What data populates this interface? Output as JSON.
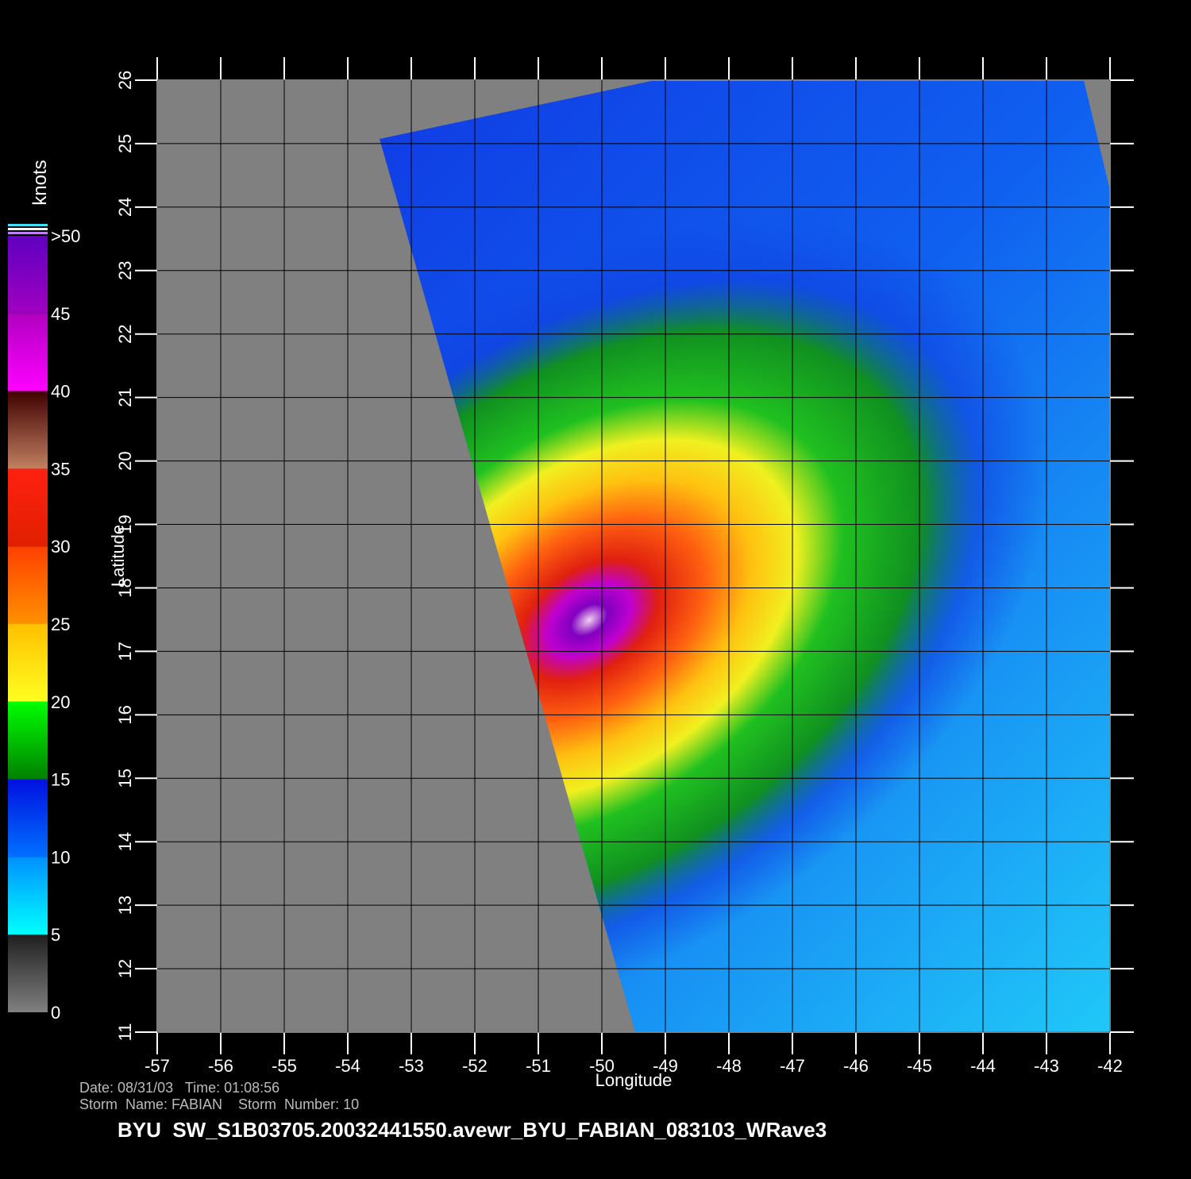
{
  "map": {
    "xlabel": "Longitude",
    "ylabel": "Latitude",
    "xlim": [
      -57,
      -42
    ],
    "ylim": [
      11,
      26
    ],
    "xticks": [
      -57,
      -56,
      -55,
      -54,
      -53,
      -52,
      -51,
      -50,
      -49,
      -48,
      -47,
      -46,
      -45,
      -44,
      -43,
      -42
    ],
    "yticks": [
      11,
      12,
      13,
      14,
      15,
      16,
      17,
      18,
      19,
      20,
      21,
      22,
      23,
      24,
      25,
      26
    ]
  },
  "colorbar": {
    "unit": "knots",
    "lim": [
      0,
      50
    ],
    "ticks": [
      {
        "value": 0,
        "label": "0"
      },
      {
        "value": 5,
        "label": "5"
      },
      {
        "value": 10,
        "label": "10"
      },
      {
        "value": 15,
        "label": "15"
      },
      {
        "value": 20,
        "label": "20"
      },
      {
        "value": 25,
        "label": "25"
      },
      {
        "value": 30,
        "label": "30"
      },
      {
        "value": 35,
        "label": "35"
      },
      {
        "value": 40,
        "label": "40"
      },
      {
        "value": 45,
        "label": "45"
      },
      {
        "value": 50,
        "label": ">50"
      }
    ]
  },
  "footer": {
    "line1": "Date: 08/31/03   Time: 01:08:56",
    "line2": "Storm  Name: FABIAN    Storm  Number: 10",
    "title": "BYU  SW_S1B03705.20032441550.avewr_BYU_FABIAN_083103_WRave3"
  }
}
